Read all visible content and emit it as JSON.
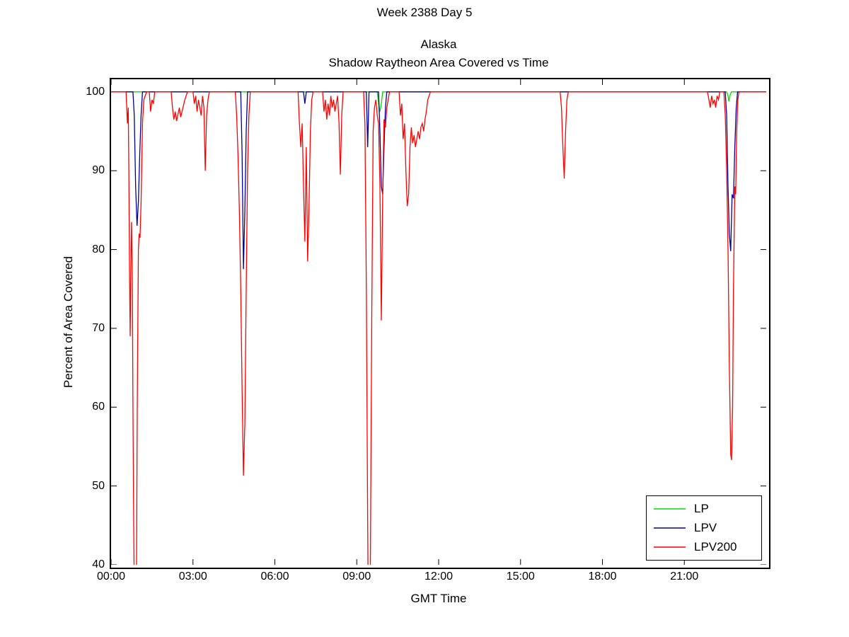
{
  "header": {
    "super_title": "Week 2388 Day 5",
    "title_line1": "Alaska",
    "title_line2": "Shadow Raytheon Area Covered vs Time"
  },
  "chart_data": {
    "type": "line",
    "title": "Alaska Shadow Raytheon Area Covered vs Time",
    "xlabel": "GMT Time",
    "ylabel": "Percent of Area Covered",
    "axes": {
      "xlim": [
        0,
        24
      ],
      "ylim": [
        40,
        101.6
      ],
      "grid": false,
      "x_ticks": [
        {
          "h": 0,
          "label": "00:00"
        },
        {
          "h": 3,
          "label": "03:00"
        },
        {
          "h": 6,
          "label": "06:00"
        },
        {
          "h": 9,
          "label": "09:00"
        },
        {
          "h": 12,
          "label": "12:00"
        },
        {
          "h": 15,
          "label": "15:00"
        },
        {
          "h": 18,
          "label": "18:00"
        },
        {
          "h": 21,
          "label": "21:00"
        }
      ],
      "y_ticks": [
        {
          "v": 40,
          "label": "40"
        },
        {
          "v": 50,
          "label": "50"
        },
        {
          "v": 60,
          "label": "60"
        },
        {
          "v": 70,
          "label": "70"
        },
        {
          "v": 80,
          "label": "80"
        },
        {
          "v": 90,
          "label": "90"
        },
        {
          "v": 100,
          "label": "100"
        }
      ]
    },
    "legend_position": "bottom-right",
    "series": [
      {
        "name": "LP",
        "color": "#00dd00",
        "points": [
          [
            0,
            100
          ],
          [
            9.75,
            100
          ],
          [
            9.8,
            98.5
          ],
          [
            9.85,
            97.5
          ],
          [
            9.9,
            98.5
          ],
          [
            9.95,
            100
          ],
          [
            22.55,
            100
          ],
          [
            22.6,
            99.5
          ],
          [
            22.63,
            98.8
          ],
          [
            22.67,
            99.5
          ],
          [
            22.72,
            100
          ],
          [
            24,
            100
          ]
        ]
      },
      {
        "name": "LPV",
        "color": "#000099",
        "points": [
          [
            0,
            100
          ],
          [
            0.8,
            100
          ],
          [
            0.85,
            97
          ],
          [
            0.9,
            88
          ],
          [
            0.95,
            83
          ],
          [
            1.0,
            86
          ],
          [
            1.05,
            92
          ],
          [
            1.1,
            97
          ],
          [
            1.15,
            100
          ],
          [
            4.75,
            100
          ],
          [
            4.8,
            92
          ],
          [
            4.85,
            77.5
          ],
          [
            4.9,
            85
          ],
          [
            4.95,
            95
          ],
          [
            5.0,
            100
          ],
          [
            7.05,
            100
          ],
          [
            7.1,
            98.5
          ],
          [
            7.15,
            100
          ],
          [
            9.35,
            100
          ],
          [
            9.4,
            93
          ],
          [
            9.45,
            100
          ],
          [
            9.8,
            100
          ],
          [
            9.85,
            95
          ],
          [
            9.9,
            88
          ],
          [
            9.95,
            87
          ],
          [
            10.0,
            93
          ],
          [
            10.05,
            98
          ],
          [
            10.1,
            100
          ],
          [
            22.5,
            100
          ],
          [
            22.55,
            97
          ],
          [
            22.6,
            88
          ],
          [
            22.65,
            82
          ],
          [
            22.7,
            79.8
          ],
          [
            22.75,
            87
          ],
          [
            22.8,
            86.5
          ],
          [
            22.85,
            93
          ],
          [
            22.9,
            98
          ],
          [
            22.95,
            100
          ],
          [
            24,
            100
          ]
        ]
      },
      {
        "name": "LPV200",
        "color": "#ff0000",
        "points": [
          [
            0,
            100
          ],
          [
            0.55,
            100
          ],
          [
            0.6,
            96
          ],
          [
            0.63,
            98
          ],
          [
            0.65,
            90
          ],
          [
            0.68,
            76
          ],
          [
            0.7,
            69
          ],
          [
            0.73,
            80
          ],
          [
            0.75,
            83.5
          ],
          [
            0.78,
            76
          ],
          [
            0.8,
            60
          ],
          [
            0.83,
            45
          ],
          [
            0.86,
            32
          ],
          [
            0.9,
            30
          ],
          [
            0.93,
            38
          ],
          [
            0.96,
            60
          ],
          [
            1.0,
            80
          ],
          [
            1.03,
            82
          ],
          [
            1.06,
            81.5
          ],
          [
            1.1,
            86
          ],
          [
            1.15,
            96
          ],
          [
            1.2,
            99
          ],
          [
            1.3,
            100
          ],
          [
            1.4,
            100
          ],
          [
            1.45,
            97.5
          ],
          [
            1.5,
            99
          ],
          [
            1.55,
            98.5
          ],
          [
            1.6,
            100
          ],
          [
            2.2,
            100
          ],
          [
            2.25,
            98
          ],
          [
            2.3,
            96.5
          ],
          [
            2.35,
            97.5
          ],
          [
            2.4,
            96.3
          ],
          [
            2.5,
            98
          ],
          [
            2.55,
            96.8
          ],
          [
            2.6,
            97.5
          ],
          [
            2.7,
            99
          ],
          [
            2.8,
            100
          ],
          [
            3.0,
            100
          ],
          [
            3.05,
            98.5
          ],
          [
            3.1,
            99.5
          ],
          [
            3.15,
            97.5
          ],
          [
            3.2,
            99
          ],
          [
            3.3,
            97
          ],
          [
            3.35,
            99.5
          ],
          [
            3.4,
            98
          ],
          [
            3.45,
            90
          ],
          [
            3.5,
            97
          ],
          [
            3.55,
            99
          ],
          [
            3.6,
            100
          ],
          [
            4.55,
            100
          ],
          [
            4.6,
            97
          ],
          [
            4.65,
            92
          ],
          [
            4.7,
            85
          ],
          [
            4.75,
            75
          ],
          [
            4.8,
            62
          ],
          [
            4.85,
            51.3
          ],
          [
            4.9,
            58
          ],
          [
            4.95,
            75
          ],
          [
            5.0,
            90
          ],
          [
            5.05,
            97
          ],
          [
            5.1,
            100
          ],
          [
            6.85,
            100
          ],
          [
            6.9,
            96
          ],
          [
            6.95,
            93
          ],
          [
            7.0,
            96
          ],
          [
            7.05,
            88
          ],
          [
            7.1,
            81
          ],
          [
            7.15,
            93
          ],
          [
            7.2,
            78.5
          ],
          [
            7.25,
            85
          ],
          [
            7.3,
            95
          ],
          [
            7.35,
            99
          ],
          [
            7.4,
            100
          ],
          [
            7.75,
            100
          ],
          [
            7.8,
            97.5
          ],
          [
            7.85,
            99
          ],
          [
            7.9,
            96.5
          ],
          [
            7.95,
            98.5
          ],
          [
            8.0,
            97
          ],
          [
            8.05,
            99.5
          ],
          [
            8.1,
            98
          ],
          [
            8.15,
            99
          ],
          [
            8.2,
            97.5
          ],
          [
            8.3,
            99.5
          ],
          [
            8.35,
            96
          ],
          [
            8.4,
            89.5
          ],
          [
            8.45,
            97
          ],
          [
            8.5,
            100
          ],
          [
            9.25,
            100
          ],
          [
            9.3,
            96
          ],
          [
            9.35,
            75
          ],
          [
            9.4,
            45
          ],
          [
            9.43,
            30
          ],
          [
            9.47,
            32
          ],
          [
            9.5,
            40
          ],
          [
            9.55,
            72
          ],
          [
            9.6,
            95
          ],
          [
            9.65,
            98
          ],
          [
            9.7,
            99
          ],
          [
            9.75,
            97
          ],
          [
            9.8,
            96
          ],
          [
            9.85,
            88
          ],
          [
            9.9,
            71
          ],
          [
            9.95,
            87
          ],
          [
            10.0,
            96.5
          ],
          [
            10.05,
            95.5
          ],
          [
            10.1,
            98
          ],
          [
            10.2,
            100
          ],
          [
            10.55,
            100
          ],
          [
            10.6,
            97
          ],
          [
            10.65,
            98.5
          ],
          [
            10.7,
            94
          ],
          [
            10.75,
            96
          ],
          [
            10.8,
            90
          ],
          [
            10.85,
            85.5
          ],
          [
            10.9,
            87
          ],
          [
            10.95,
            93
          ],
          [
            11.0,
            95.5
          ],
          [
            11.05,
            93.5
          ],
          [
            11.1,
            94.5
          ],
          [
            11.15,
            93
          ],
          [
            11.2,
            94
          ],
          [
            11.25,
            95
          ],
          [
            11.3,
            94
          ],
          [
            11.35,
            95.5
          ],
          [
            11.4,
            96
          ],
          [
            11.45,
            95
          ],
          [
            11.5,
            96.5
          ],
          [
            11.55,
            97.5
          ],
          [
            11.6,
            99
          ],
          [
            11.7,
            100
          ],
          [
            16.45,
            100
          ],
          [
            16.5,
            98
          ],
          [
            16.55,
            93
          ],
          [
            16.6,
            89
          ],
          [
            16.65,
            95
          ],
          [
            16.7,
            99
          ],
          [
            16.75,
            100
          ],
          [
            21.85,
            100
          ],
          [
            21.9,
            99
          ],
          [
            21.95,
            98
          ],
          [
            22.0,
            99.5
          ],
          [
            22.05,
            98.5
          ],
          [
            22.1,
            99
          ],
          [
            22.15,
            98
          ],
          [
            22.2,
            99.5
          ],
          [
            22.25,
            99
          ],
          [
            22.3,
            100
          ],
          [
            22.45,
            100
          ],
          [
            22.5,
            97
          ],
          [
            22.55,
            90
          ],
          [
            22.6,
            80
          ],
          [
            22.65,
            65
          ],
          [
            22.7,
            54
          ],
          [
            22.73,
            53.3
          ],
          [
            22.77,
            60
          ],
          [
            22.8,
            75
          ],
          [
            22.85,
            88
          ],
          [
            22.88,
            87
          ],
          [
            22.92,
            95
          ],
          [
            22.96,
            99
          ],
          [
            23.0,
            100
          ],
          [
            24,
            100
          ]
        ]
      }
    ]
  }
}
